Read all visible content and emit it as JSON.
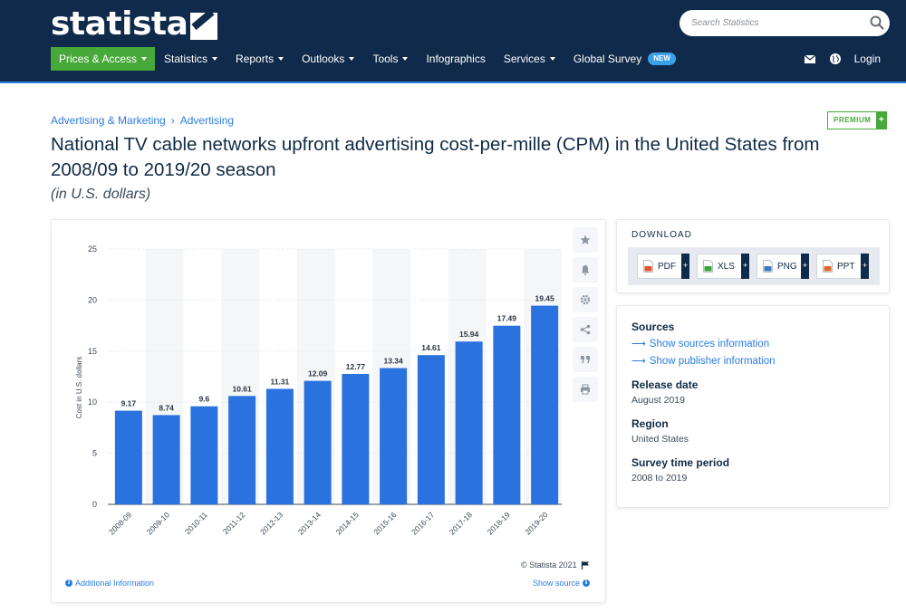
{
  "header": {
    "logo_text": "statista",
    "search_placeholder": "Search Statistics",
    "nav": [
      {
        "label": "Prices & Access",
        "caret": true,
        "active": true
      },
      {
        "label": "Statistics",
        "caret": true
      },
      {
        "label": "Reports",
        "caret": true
      },
      {
        "label": "Outlooks",
        "caret": true
      },
      {
        "label": "Tools",
        "caret": true
      },
      {
        "label": "Infographics",
        "caret": false
      },
      {
        "label": "Services",
        "caret": true
      },
      {
        "label": "Global Survey",
        "caret": false,
        "badge": "NEW"
      }
    ],
    "login_label": "Login"
  },
  "breadcrumb": {
    "items": [
      "Advertising & Marketing",
      "Advertising"
    ],
    "separator": "›"
  },
  "premium_label": "PREMIUM",
  "premium_plus": "+",
  "title": "National TV cable networks upfront advertising cost-per-mille (CPM) in the United States from 2008/09 to 2019/20 season",
  "subtitle": "(in U.S. dollars)",
  "chart_footer": {
    "copyright": "© Statista 2021",
    "additional_info": "Additional Information",
    "show_source": "Show source"
  },
  "download": {
    "title": "DOWNLOAD",
    "formats": [
      {
        "label": "PDF",
        "color": "#e2532d"
      },
      {
        "label": "XLS",
        "color": "#3ba53b"
      },
      {
        "label": "PNG",
        "color": "#3a78c2"
      },
      {
        "label": "PPT",
        "color": "#e0672a"
      }
    ]
  },
  "meta": {
    "sources_heading": "Sources",
    "show_sources": "Show sources information",
    "show_publisher": "Show publisher information",
    "release_heading": "Release date",
    "release_value": "August 2019",
    "region_heading": "Region",
    "region_value": "United States",
    "period_heading": "Survey time period",
    "period_value": "2008 to 2019"
  },
  "colors": {
    "bar": "#2a72de",
    "nav_bg": "#0f2a4a",
    "active_green": "#48a93b",
    "link": "#2a7de1"
  },
  "chart_data": {
    "type": "bar",
    "categories": [
      "2008-09",
      "2009-10",
      "2010-11",
      "2011-12",
      "2012-13",
      "2013-14",
      "2014-15",
      "2015-16",
      "2016-17",
      "2017-18",
      "2018-19",
      "2019-20"
    ],
    "values": [
      9.17,
      8.74,
      9.6,
      10.61,
      11.31,
      12.09,
      12.77,
      13.34,
      14.61,
      15.94,
      17.49,
      19.45
    ],
    "value_labels": [
      "9.17",
      "8.74",
      "9.6",
      "10.61",
      "11.31",
      "12.09",
      "12.77",
      "13.34",
      "14.61",
      "15.94",
      "17.49",
      "19.45"
    ],
    "ylabel": "Cost in U.S. dollars",
    "ylim": [
      0,
      25
    ],
    "yticks": [
      "0",
      "5",
      "10",
      "15",
      "20",
      "25"
    ],
    "grid": true,
    "alternating_bands": true
  }
}
